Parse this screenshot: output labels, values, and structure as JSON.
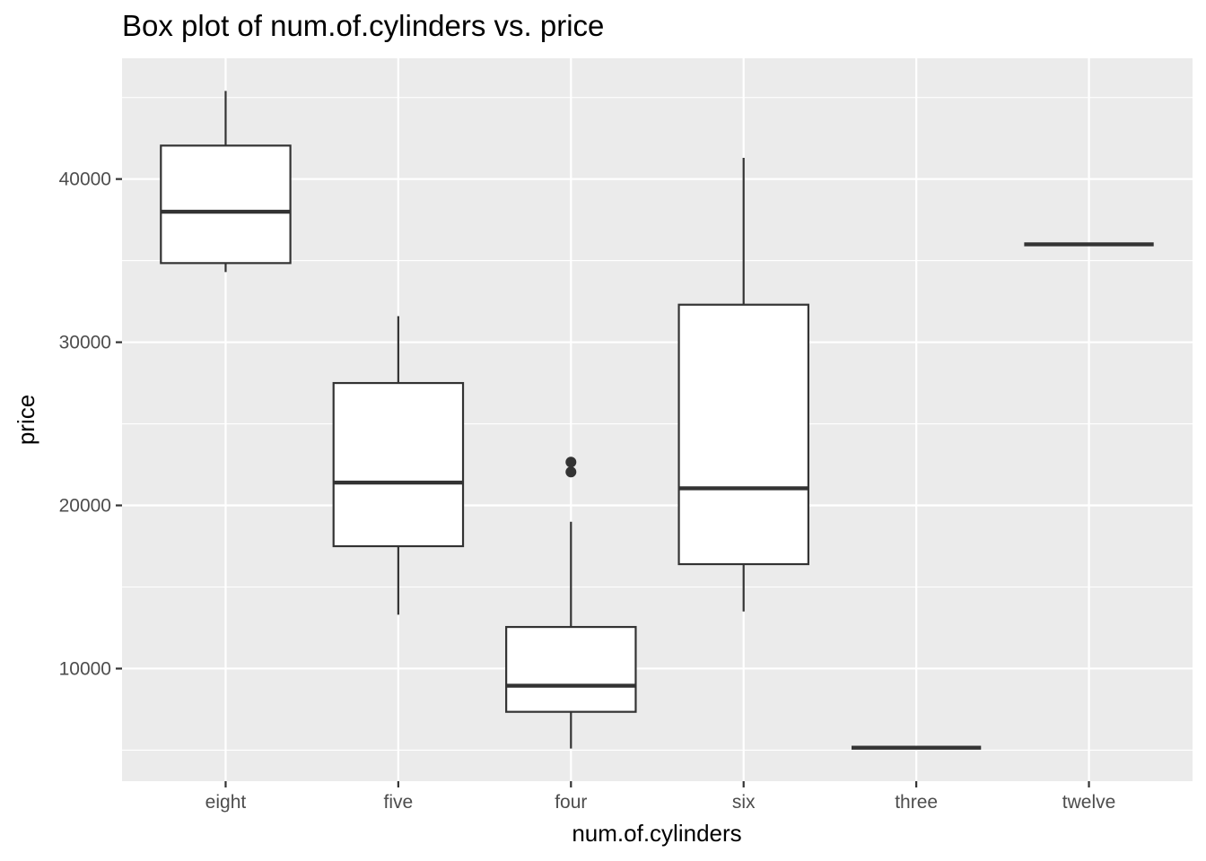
{
  "chart_data": {
    "type": "boxplot",
    "title": "Box plot of num.of.cylinders vs. price",
    "xlabel": "num.of.cylinders",
    "ylabel": "price",
    "categories": [
      "eight",
      "five",
      "four",
      "six",
      "three",
      "twelve"
    ],
    "y_ticks": [
      10000,
      20000,
      30000,
      40000
    ],
    "y_tick_labels": [
      "10000",
      "20000",
      "30000",
      "40000"
    ],
    "ylim": [
      3100,
      47400
    ],
    "grid": true,
    "boxes": [
      {
        "category": "eight",
        "whisker_low": 34300,
        "q1": 34850,
        "median": 38000,
        "q3": 42050,
        "whisker_high": 45400,
        "outliers": []
      },
      {
        "category": "five",
        "whisker_low": 13300,
        "q1": 17500,
        "median": 21400,
        "q3": 27500,
        "whisker_high": 31600,
        "outliers": []
      },
      {
        "category": "four",
        "whisker_low": 5100,
        "q1": 7350,
        "median": 8950,
        "q3": 12550,
        "whisker_high": 19000,
        "outliers": [
          22050,
          22650
        ]
      },
      {
        "category": "six",
        "whisker_low": 13500,
        "q1": 16400,
        "median": 21050,
        "q3": 32300,
        "whisker_high": 41300,
        "outliers": []
      },
      {
        "category": "three",
        "whisker_low": 5150,
        "q1": 5150,
        "median": 5150,
        "q3": 5150,
        "whisker_high": 5150,
        "outliers": []
      },
      {
        "category": "twelve",
        "whisker_low": 36000,
        "q1": 36000,
        "median": 36000,
        "q3": 36000,
        "whisker_high": 36000,
        "outliers": []
      }
    ],
    "colors": {
      "panel_background": "#ebebeb",
      "grid_major": "#ffffff",
      "box_fill": "#ffffff",
      "box_stroke": "#333333",
      "tick_text": "#4d4d4d",
      "axis_title_text": "#000000"
    }
  }
}
